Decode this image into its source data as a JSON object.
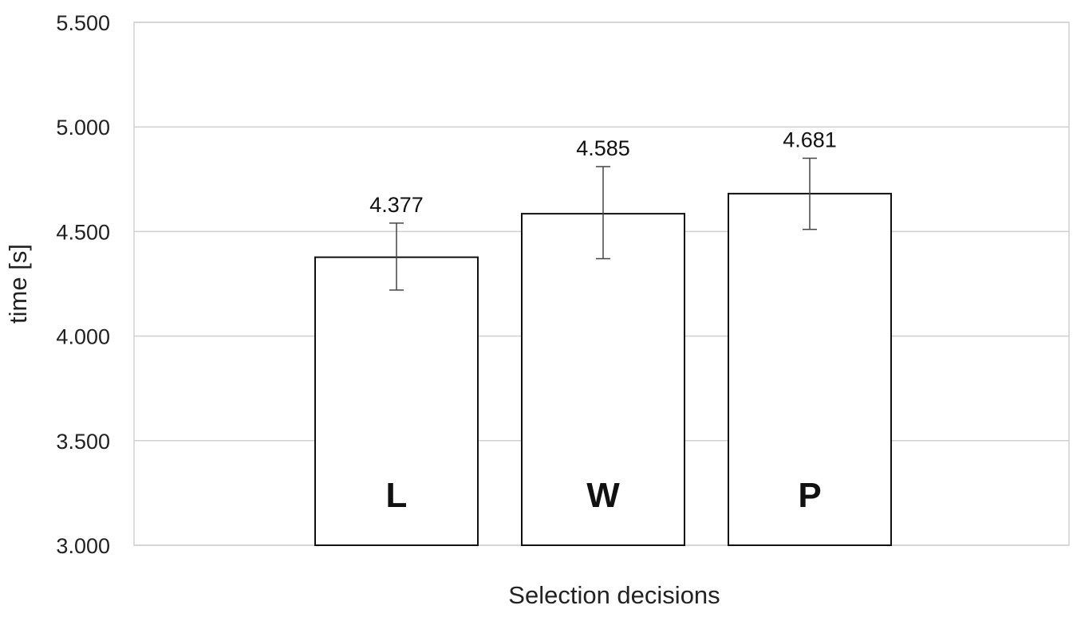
{
  "chart_data": {
    "type": "bar",
    "categories": [
      "L",
      "W",
      "P"
    ],
    "values": [
      4377,
      4585,
      4681
    ],
    "value_labels": [
      "4.377",
      "4.585",
      "4.681"
    ],
    "error_high": [
      4540,
      4810,
      4850
    ],
    "error_low": [
      4220,
      4370,
      4510
    ],
    "xlabel": "Selection decisions",
    "ylabel": "time [s]",
    "ylim": [
      3000,
      5500
    ],
    "yticks": [
      3000,
      3500,
      4000,
      4500,
      5000,
      5500
    ],
    "ytick_labels": [
      "3.000",
      "3.500",
      "4.000",
      "4.500",
      "5.000",
      "5.500"
    ],
    "grid": true,
    "bar_color": "#ffffff",
    "bar_edge_color": "#111111",
    "grid_color": "#d0d0d0"
  }
}
